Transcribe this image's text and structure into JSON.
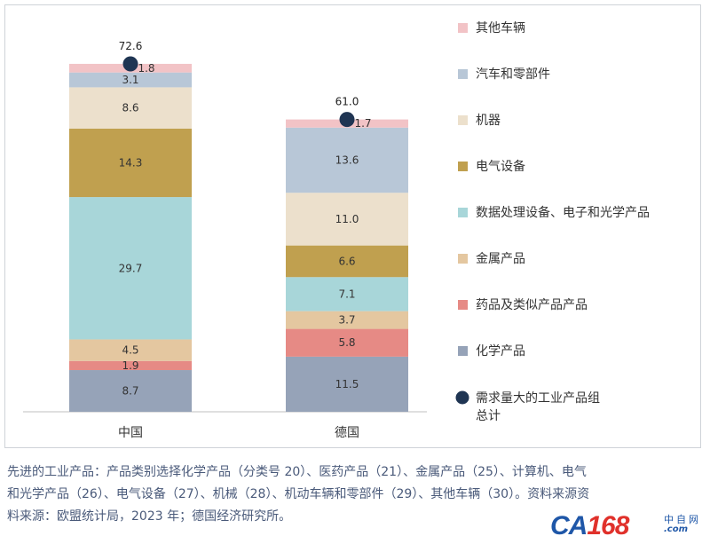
{
  "chart_data": {
    "type": "bar",
    "stacked": true,
    "categories": [
      "中国",
      "德国"
    ],
    "series": [
      {
        "name": "化学产品",
        "color": "#96a3b8",
        "values": [
          8.7,
          11.5
        ]
      },
      {
        "name": "药品及类似产品产品",
        "color": "#e68a85",
        "values": [
          1.9,
          5.8
        ]
      },
      {
        "name": "金属产品",
        "color": "#e4c7a0",
        "values": [
          4.5,
          3.7
        ]
      },
      {
        "name": "数据处理设备、电子和光学产品",
        "color": "#a8d6d9",
        "values": [
          29.7,
          7.1
        ]
      },
      {
        "name": "电气设备",
        "color": "#c0a04f",
        "values": [
          14.3,
          6.6
        ]
      },
      {
        "name": "机器",
        "color": "#ece0cc",
        "values": [
          8.6,
          11.0
        ]
      },
      {
        "name": "汽车和零部件",
        "color": "#b8c7d7",
        "values": [
          3.1,
          13.6
        ]
      },
      {
        "name": "其他车辆",
        "color": "#f2c3c6",
        "values": [
          1.8,
          1.7
        ]
      }
    ],
    "totals": {
      "name": "需求量大的工业产品组总计",
      "color": "#1f3553",
      "values": [
        72.6,
        61.0
      ],
      "labels": [
        "72.6",
        "61.0"
      ]
    },
    "segment_labels": [
      [
        "8.7",
        "1.9",
        "4.5",
        "29.7",
        "14.3",
        "8.6",
        "3.1",
        "1.8"
      ],
      [
        "11.5",
        "5.8",
        "3.7",
        "7.1",
        "6.6",
        "11.0",
        "13.6",
        "1.7"
      ]
    ],
    "legend_order": [
      "其他车辆",
      "汽车和零部件",
      "机器",
      "电气设备",
      "数据处理设备、电子和光学产品",
      "金属产品",
      "药品及类似产品产品",
      "化学产品"
    ],
    "legend_position": "right",
    "ylim": [
      0,
      75
    ],
    "grid": false
  },
  "caption": {
    "line1": "先进的工业产品：产品类别选择化学产品（分类号 20）、医药产品（21）、金属产品（25）、计算机、电气",
    "line2": "和光学产品（26）、电气设备（27）、机械（28）、机动车辆和零部件（29）、其他车辆（30）。资料来源资",
    "line3": "料来源：欧盟统计局，2023 年；德国经济研究所。"
  },
  "logo": {
    "part1": "CA",
    "part2": "168",
    "sub": "中自网",
    "domain": ".com"
  }
}
